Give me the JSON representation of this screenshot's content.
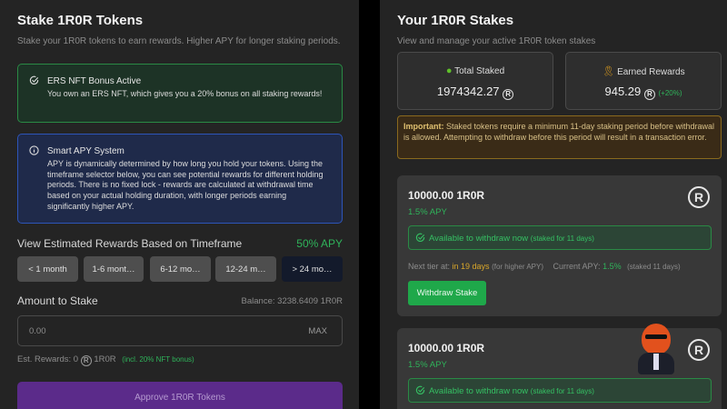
{
  "stake": {
    "title": "Stake 1R0R Tokens",
    "subtitle": "Stake your 1R0R tokens to earn rewards. Higher APY for longer staking periods.",
    "nft_box": {
      "title": "ERS NFT Bonus Active",
      "text": "You own an ERS NFT, which gives you a 20% bonus on all staking rewards!"
    },
    "apy_box": {
      "title": "Smart APY System",
      "text": "APY is dynamically determined by how long you hold your tokens. Using the timeframe selector below, you can see potential rewards for different holding periods. There is no fixed lock - rewards are calculated at withdrawal time based on your actual holding duration, with longer periods earning significantly higher APY."
    },
    "timeframe_label": "View Estimated Rewards Based on Timeframe",
    "timeframe_apy": "50% APY",
    "timeframes": [
      {
        "label": "< 1 month"
      },
      {
        "label": "1-6 mont…"
      },
      {
        "label": "6-12 mo…"
      },
      {
        "label": "12-24 m…"
      },
      {
        "label": "> 24 mo…",
        "active": true
      }
    ],
    "amount_label": "Amount to Stake",
    "balance": "Balance: 3238.6409 1R0R",
    "amount_placeholder": "0.00",
    "max_label": "MAX",
    "est_rewards_prefix": "Est. Rewards: 0",
    "est_rewards_unit": "1R0R",
    "est_rewards_bonus": "(incl. 20% NFT bonus)",
    "approve_label": "Approve 1R0R Tokens"
  },
  "stakes": {
    "title": "Your 1R0R Stakes",
    "subtitle": "View and manage your active 1R0R token stakes",
    "total_staked": {
      "label": "Total Staked",
      "value": "1974342.27"
    },
    "earned": {
      "label": "Earned Rewards",
      "value": "945.29",
      "bonus": "(+20%)"
    },
    "important_label": "Important:",
    "important_text": " Staked tokens require a minimum 11-day staking period before withdrawal is allowed. Attempting to withdraw before this period will result in a transaction error.",
    "coin_glyph": "R",
    "items": [
      {
        "amount": "10000.00 1R0R",
        "apy": "1.5% APY",
        "status": "Available to withdraw now",
        "status_note": "(staked for 11 days)",
        "next_tier_label": "Next tier at:",
        "next_tier_value": "in 19 days",
        "next_tier_note": "(for higher APY)",
        "current_apy_label": "Current APY:",
        "current_apy_value": "1.5%",
        "current_apy_note": "(staked 11 days)",
        "withdraw_label": "Withdraw Stake"
      },
      {
        "amount": "10000.00 1R0R",
        "apy": "1.5% APY",
        "status": "Available to withdraw now",
        "status_note": "(staked for 11 days)"
      }
    ]
  },
  "colors": {
    "accent_green": "#2fb35a",
    "purple": "#5b2b8a",
    "warning": "#d8a62a"
  }
}
